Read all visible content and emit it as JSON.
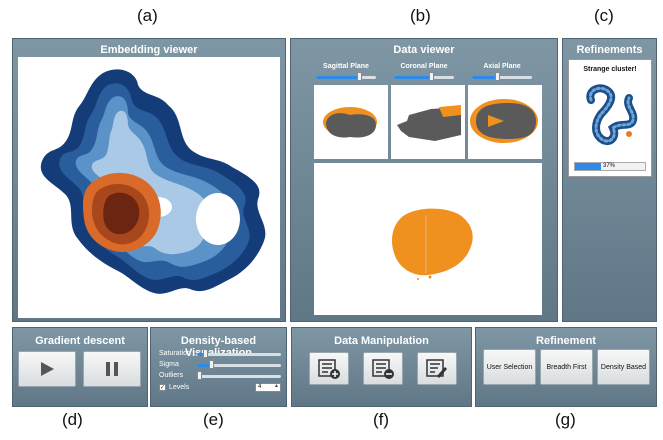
{
  "captions": {
    "a": "(a)",
    "b": "(b)",
    "c": "(c)",
    "d": "(d)",
    "e": "(e)",
    "f": "(f)",
    "g": "(g)"
  },
  "embedding": {
    "title": "Embedding viewer"
  },
  "data_viewer": {
    "title": "Data viewer",
    "planes": [
      {
        "label": "Sagittal Plane",
        "slider": 0.72
      },
      {
        "label": "Coronal Plane",
        "slider": 0.62
      },
      {
        "label": "Axial Plane",
        "slider": 0.42
      }
    ]
  },
  "refinements": {
    "title": "Refinements",
    "card_title": "Strange cluster!",
    "progress": 37,
    "progress_text": "37%"
  },
  "gradient": {
    "title": "Gradient descent",
    "play_icon": "play-icon",
    "pause_icon": "pause-icon"
  },
  "density": {
    "title": "Density-based Visualization",
    "sliders": [
      {
        "label": "Saturation",
        "value": 0.08
      },
      {
        "label": "Sigma",
        "value": 0.15
      },
      {
        "label": "Outliers",
        "value": 0.0
      }
    ],
    "levels_label": "Levels",
    "levels_checked": true,
    "levels_value": "4"
  },
  "manip": {
    "title": "Data Manipulation",
    "buttons": [
      "list-add-icon",
      "list-remove-icon",
      "list-edit-icon"
    ]
  },
  "refinement": {
    "title": "Refinement",
    "buttons": [
      "User Selection",
      "Breadth First",
      "Density Based"
    ]
  },
  "colors": {
    "panel": "#6d8595",
    "accent": "#2e8ae6",
    "orange": "#f0901e",
    "brain": "#5a5a5a"
  }
}
